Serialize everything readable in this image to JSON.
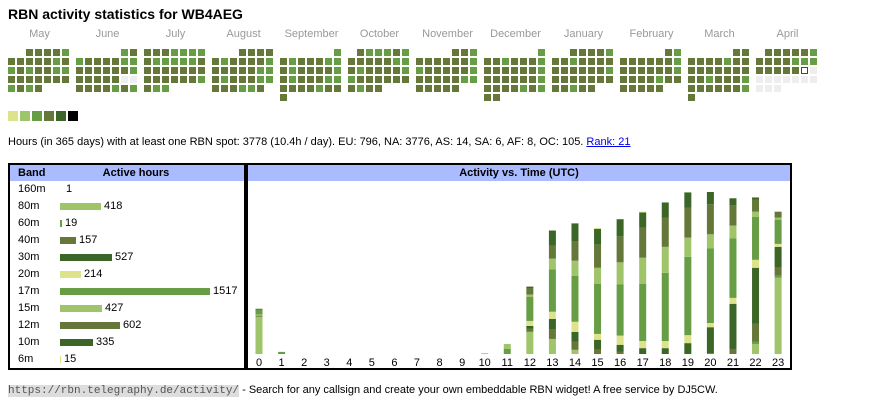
{
  "title": "RBN activity statistics for WB4AEG",
  "colors": {
    "d": "#65783a",
    "g": "#679d44",
    "e": "#eeeeee",
    "x": "#ffffff"
  },
  "calendar": [
    {
      "month": "May",
      "rows": [
        "..ddddg",
        "dddddgd",
        "gdgddgg",
        "ddddddd",
        "gdgd..."
      ]
    },
    {
      "month": "June",
      "rows": [
        ".....gd",
        "gddddgg",
        "ddddddg",
        "dddddee",
        "ddddgdg"
      ]
    },
    {
      "month": "July",
      "rows": [
        "dddgggg",
        "dgggggd",
        "ddddddd",
        "ddddddg",
        "dgg...."
      ]
    },
    {
      "month": "August",
      "rows": [
        "...dddd",
        "dgddddg",
        "dddddgg",
        "dgdddgg",
        "dddggd."
      ]
    },
    {
      "month": "September",
      "rows": [
        "......g",
        "dgdddgg",
        "dgddddg",
        "dgdddgg",
        "ddddgdd",
        "d......"
      ]
    },
    {
      "month": "October",
      "rows": [
        ".dgggdg",
        "dddddgg",
        "dgddddg",
        "gdddddd",
        "dgdd..."
      ]
    },
    {
      "month": "November",
      "rows": [
        "....ddg",
        "ddddddg",
        "gdddddg",
        "dddddgg",
        "ddddd.."
      ]
    },
    {
      "month": "December",
      "rows": [
        "......g",
        "ddgdddg",
        "ddddddg",
        "ddddddg",
        "ddddgdg",
        "dd....."
      ]
    },
    {
      "month": "January",
      "rows": [
        "..ddddg",
        "ddgdddd",
        "ddddddg",
        "ddddddd",
        "ddgdd.."
      ]
    },
    {
      "month": "February",
      "rows": [
        ".....dg",
        "ddddddg",
        "ddddddg",
        "ddddgdd",
        "ddddd.."
      ]
    },
    {
      "month": "March",
      "rows": [
        ".....dd",
        "ddddgdd",
        "ddddddd",
        "ddgdddg",
        "ddddddg",
        "d......"
      ]
    },
    {
      "month": "April",
      "rows": [
        ".dddddg",
        "ddddggg",
        "dddddxe",
        "eeeeeee",
        "eee...."
      ]
    }
  ],
  "legend_colors": [
    "#dde38a",
    "#9fc46a",
    "#679d44",
    "#65783a",
    "#3b6627",
    "#000000"
  ],
  "summary": {
    "text": "Hours (in 365 days) with at least one RBN spot: 3778 (10.4h / day). EU: 796, NA: 3776, AS: 14, SA: 6, AF: 8, OC: 105. ",
    "rank": "Rank: 21"
  },
  "bands": {
    "header_band": "Band",
    "header_hours": "Active hours",
    "max": 1517,
    "items": [
      {
        "band": "160m",
        "hours": "1",
        "value": 1,
        "color": "#3b6627"
      },
      {
        "band": "80m",
        "hours": "418",
        "value": 418,
        "color": "#9fc46a"
      },
      {
        "band": "60m",
        "hours": "19",
        "value": 19,
        "color": "#679d44"
      },
      {
        "band": "40m",
        "hours": "157",
        "value": 157,
        "color": "#65783a"
      },
      {
        "band": "30m",
        "hours": "527",
        "value": 527,
        "color": "#3b6627"
      },
      {
        "band": "20m",
        "hours": "214",
        "value": 214,
        "color": "#dde38a"
      },
      {
        "band": "17m",
        "hours": "1517",
        "value": 1517,
        "color": "#679d44"
      },
      {
        "band": "15m",
        "hours": "427",
        "value": 427,
        "color": "#9fc46a"
      },
      {
        "band": "12m",
        "hours": "602",
        "value": 602,
        "color": "#65783a"
      },
      {
        "band": "10m",
        "hours": "335",
        "value": 335,
        "color": "#3b6627"
      },
      {
        "band": "6m",
        "hours": "15",
        "value": 15,
        "color": "#dde38a"
      }
    ]
  },
  "chart_data": {
    "type": "bar",
    "stacked": true,
    "title": "Activity vs. Time (UTC)",
    "xlabel": "",
    "ylabel": "",
    "categories": [
      "0",
      "1",
      "2",
      "3",
      "4",
      "5",
      "6",
      "7",
      "8",
      "9",
      "10",
      "11",
      "12",
      "13",
      "14",
      "15",
      "16",
      "17",
      "18",
      "19",
      "20",
      "21",
      "22",
      "23"
    ],
    "series_order": [
      "80m",
      "60m",
      "40m",
      "30m",
      "20m",
      "17m",
      "15m",
      "12m",
      "10m",
      "6m"
    ],
    "series_colors": {
      "80m": "#9fc46a",
      "60m": "#679d44",
      "40m": "#65783a",
      "30m": "#3b6627",
      "20m": "#dde38a",
      "17m": "#679d44",
      "15m": "#9fc46a",
      "12m": "#65783a",
      "10m": "#3b6627",
      "6m": "#dde38a"
    },
    "values": [
      {
        "80m": 89,
        "40m": 3,
        "20m": 2,
        "17m": 12,
        "10m": 2
      },
      {
        "17m": 5
      },
      {},
      {},
      {},
      {},
      {},
      {},
      {},
      {},
      {
        "15m": 2
      },
      {
        "15m": 12,
        "17m": 12
      },
      {
        "80m": 53,
        "40m": 7,
        "30m": 7,
        "20m": 12,
        "17m": 58,
        "15m": 5,
        "12m": 14,
        "10m": 5
      },
      {
        "80m": 36,
        "40m": 22,
        "30m": 26,
        "20m": 17,
        "17m": 101,
        "15m": 26,
        "12m": 31,
        "10m": 36
      },
      {
        "80m": 10,
        "40m": 19,
        "30m": 24,
        "20m": 24,
        "17m": 110,
        "15m": 36,
        "12m": 46,
        "10m": 43
      },
      {
        "40m": 10,
        "30m": 24,
        "20m": 14,
        "17m": 120,
        "15m": 38,
        "12m": 55,
        "10m": 38,
        "6m": 2
      },
      {
        "40m": 5,
        "30m": 17,
        "20m": 22,
        "17m": 122,
        "15m": 53,
        "12m": 62,
        "10m": 41
      },
      {
        "30m": 14,
        "20m": 17,
        "17m": 137,
        "15m": 62,
        "12m": 72,
        "10m": 36,
        "6m": 2
      },
      {
        "30m": 14,
        "20m": 17,
        "17m": 163,
        "15m": 62,
        "12m": 70,
        "10m": 36
      },
      {
        "30m": 26,
        "20m": 19,
        "17m": 187,
        "15m": 46,
        "12m": 72,
        "10m": 36
      },
      {
        "40m": 2,
        "30m": 62,
        "20m": 10,
        "17m": 178,
        "15m": 34,
        "12m": 72,
        "10m": 29
      },
      {
        "40m": 12,
        "30m": 108,
        "20m": 14,
        "17m": 142,
        "15m": 31,
        "12m": 48,
        "10m": 17
      },
      {
        "80m": 24,
        "60m": 5,
        "40m": 43,
        "30m": 134,
        "20m": 19,
        "17m": 103,
        "15m": 12,
        "12m": 29,
        "10m": 5
      },
      {
        "80m": 182,
        "60m": 5,
        "40m": 19,
        "30m": 50,
        "20m": 7,
        "17m": 58,
        "15m": 5,
        "12m": 14
      }
    ]
  },
  "footer": {
    "url": "https://rbn.telegraphy.de/activity/",
    "text": " - Search for any callsign and create your own embeddable RBN widget! A free service by DJ5CW."
  }
}
